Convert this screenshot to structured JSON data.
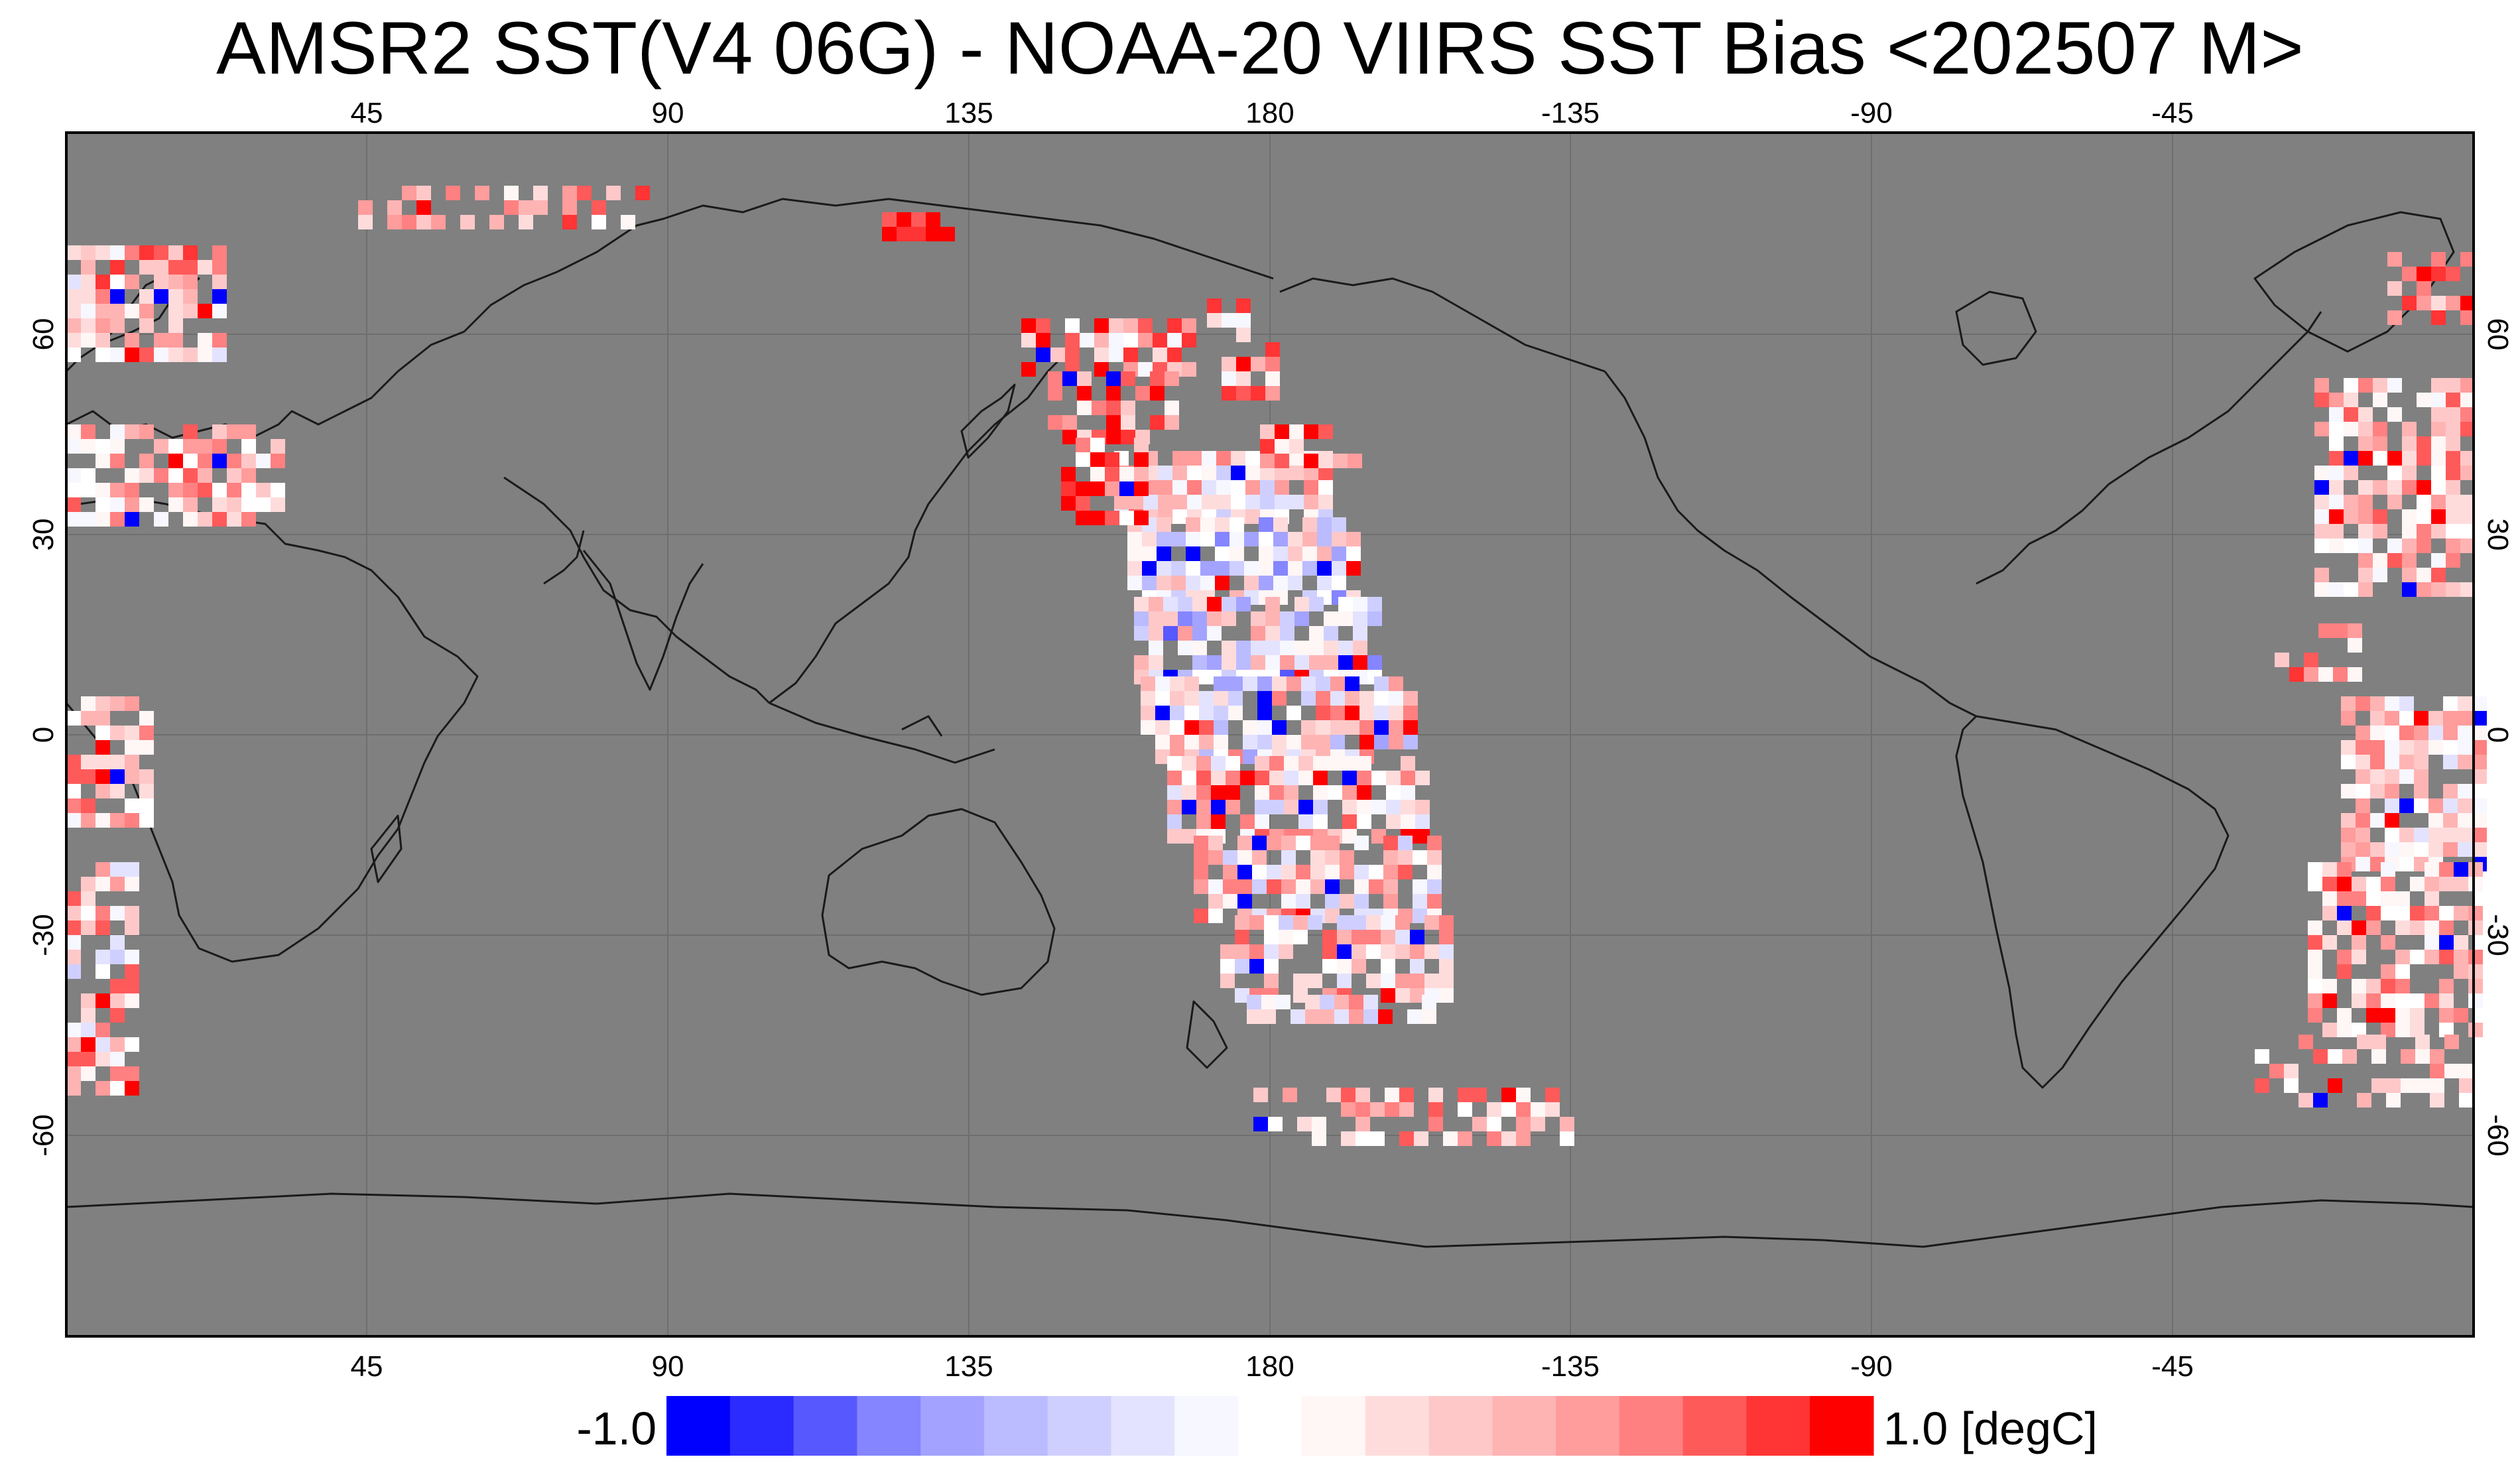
{
  "title": "AMSR2 SST(V4 06G) - NOAA-20 VIIRS SST Bias <202507 M>",
  "map": {
    "projection": "equirectangular, centered on 180",
    "background_color": "#808080",
    "gridline_color": "#6e6e6e",
    "coastline_color": "#1a1a1a",
    "lon_ticks": [
      "45",
      "90",
      "135",
      "180",
      "-135",
      "-90",
      "-45"
    ],
    "lat_ticks": [
      "60",
      "30",
      "0",
      "-30",
      "-60"
    ]
  },
  "colorbar": {
    "min_label": "-1.0",
    "max_label": "1.0 [degC]",
    "colors": [
      "#0000ff",
      "#2b2bff",
      "#5858ff",
      "#8585ff",
      "#a3a3ff",
      "#bbbbff",
      "#cfcfff",
      "#e3e3ff",
      "#f7f7ff",
      "#ffffff",
      "#fff6f6",
      "#ffdcdc",
      "#ffc8c8",
      "#ffb4b4",
      "#ff9c9c",
      "#ff8080",
      "#ff5a5a",
      "#ff3434",
      "#ff0000"
    ]
  }
}
